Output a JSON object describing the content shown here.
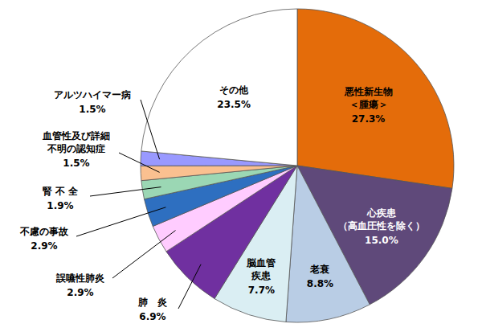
{
  "chart_data": {
    "type": "pie",
    "categories": [
      "悪性新生物\n＜腫瘍＞",
      "心疾患\n（高血圧性を除く）",
      "老衰",
      "脳血管\n疾患",
      "肺　炎",
      "誤嚥性肺炎",
      "不慮の事故",
      "腎 不 全",
      "血管性及び詳細\n不明の認知症",
      "アルツハイマー病",
      "その他"
    ],
    "values": [
      27.3,
      15.0,
      8.8,
      7.7,
      6.9,
      2.9,
      2.9,
      1.9,
      1.5,
      1.5,
      23.5
    ],
    "value_labels": [
      "27.3%",
      "15.0%",
      "8.8%",
      "7.7%",
      "6.9%",
      "2.9%",
      "2.9%",
      "1.9%",
      "1.5%",
      "1.5%",
      "23.5%"
    ],
    "colors": [
      "#e46c0a",
      "#5f497a",
      "#b9cde5",
      "#daeef3",
      "#7030a0",
      "#ffccff",
      "#2e6fc0",
      "#9bd7b4",
      "#fac090",
      "#9999ff",
      "#ffffff"
    ],
    "data_labels": true
  }
}
